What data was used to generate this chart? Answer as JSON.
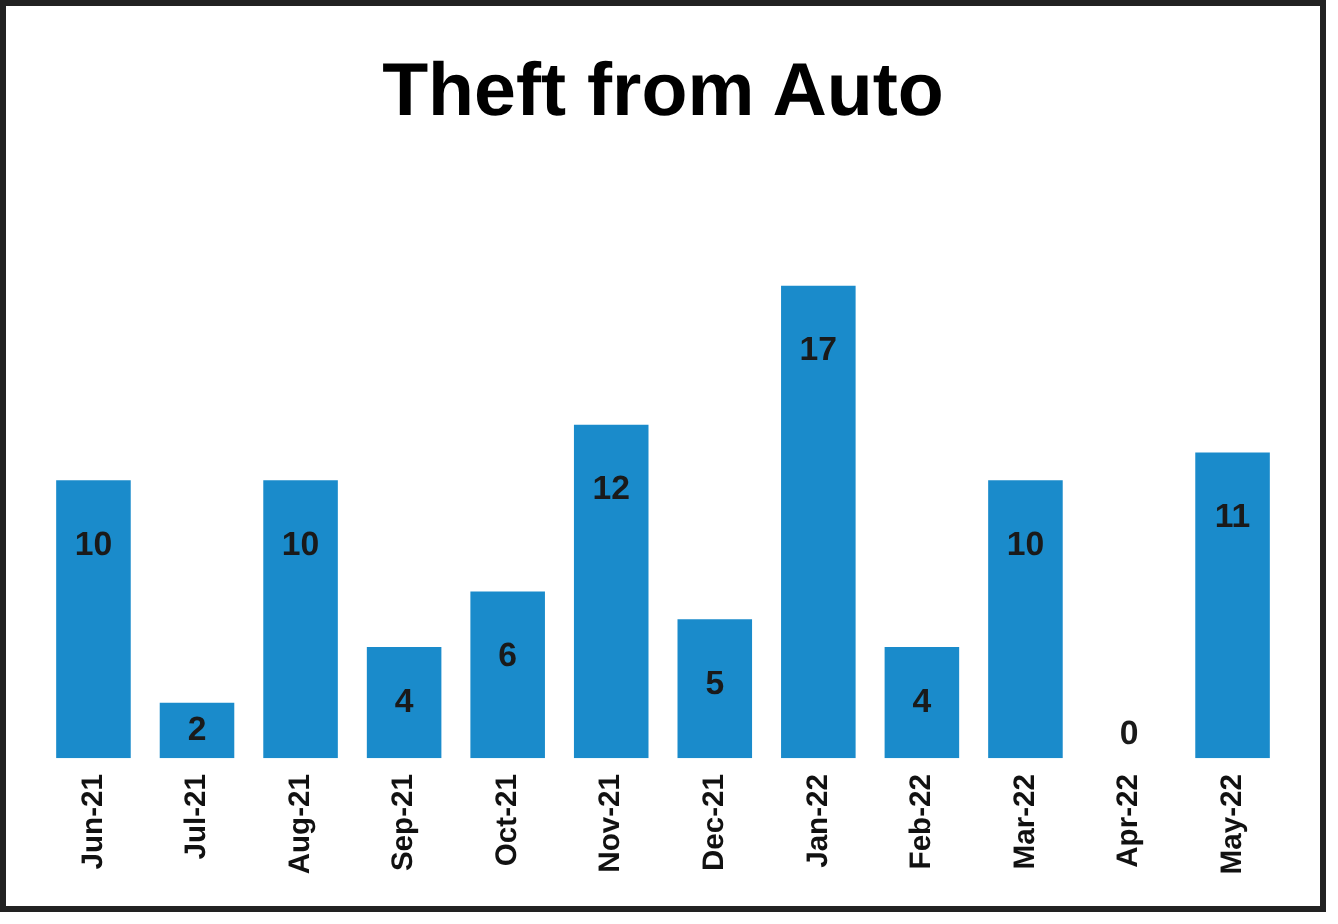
{
  "chart_data": {
    "type": "bar",
    "title": "Theft from Auto",
    "categories": [
      "Jun-21",
      "Jul-21",
      "Aug-21",
      "Sep-21",
      "Oct-21",
      "Nov-21",
      "Dec-21",
      "Jan-22",
      "Feb-22",
      "Mar-22",
      "Apr-22",
      "May-22"
    ],
    "values": [
      10,
      2,
      10,
      4,
      6,
      12,
      5,
      17,
      4,
      10,
      0,
      11
    ],
    "color": "#1a8bcb",
    "data_labels": true,
    "grid": false,
    "legend": false
  }
}
